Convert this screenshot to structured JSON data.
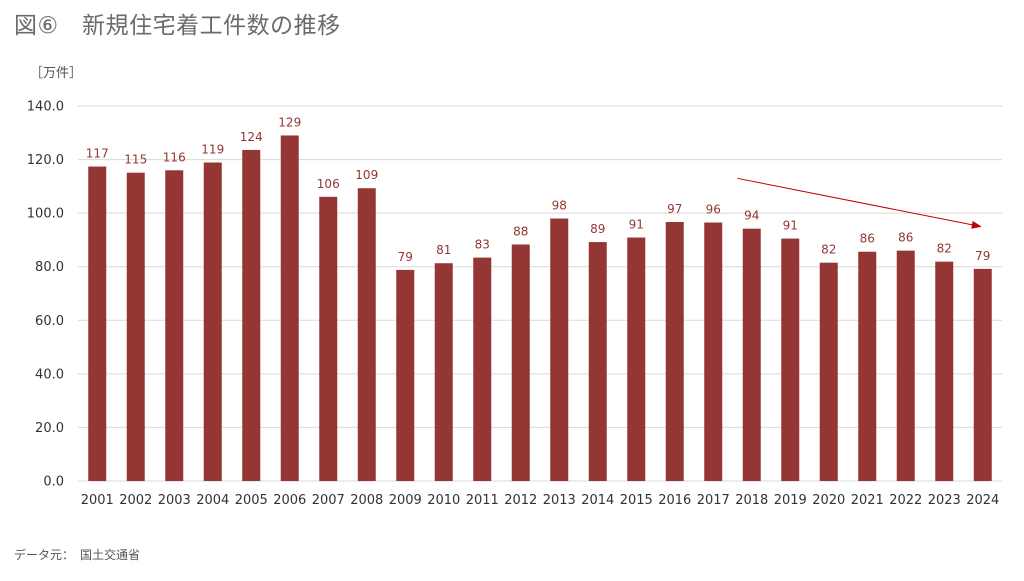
{
  "title": "図⑥　新規住宅着工件数の推移",
  "unit_label": "［万件］",
  "source_text": "データ元：　国土交通省",
  "colors": {
    "bar": "#943634",
    "label": "#943634",
    "grid": "#d9d9d9",
    "arrow": "#c00000"
  },
  "chart_data": {
    "type": "bar",
    "title": "新規住宅着工件数の推移",
    "ylabel": "［万件］",
    "xlabel": "",
    "ylim": [
      0,
      140
    ],
    "ytick_step": 20,
    "yticks": [
      "0.0",
      "20.0",
      "40.0",
      "60.0",
      "80.0",
      "100.0",
      "120.0",
      "140.0"
    ],
    "grid": true,
    "categories": [
      "2001",
      "2002",
      "2003",
      "2004",
      "2005",
      "2006",
      "2007",
      "2008",
      "2009",
      "2010",
      "2011",
      "2012",
      "2013",
      "2014",
      "2015",
      "2016",
      "2017",
      "2018",
      "2019",
      "2020",
      "2021",
      "2022",
      "2023",
      "2024"
    ],
    "values": [
      117.4,
      115.1,
      116.0,
      118.9,
      123.6,
      129.0,
      106.1,
      109.3,
      78.8,
      81.3,
      83.4,
      88.3,
      98.0,
      89.2,
      90.9,
      96.7,
      96.5,
      94.2,
      90.5,
      81.5,
      85.6,
      86.0,
      81.9,
      79.2
    ],
    "data_labels": [
      "117",
      "115",
      "116",
      "119",
      "124",
      "129",
      "106",
      "109",
      "79",
      "81",
      "83",
      "88",
      "98",
      "89",
      "91",
      "97",
      "96",
      "94",
      "91",
      "82",
      "86",
      "86",
      "82",
      "79"
    ],
    "trend_arrow": {
      "from": [
        "2017",
        113
      ],
      "to": [
        "2024",
        95
      ]
    }
  }
}
